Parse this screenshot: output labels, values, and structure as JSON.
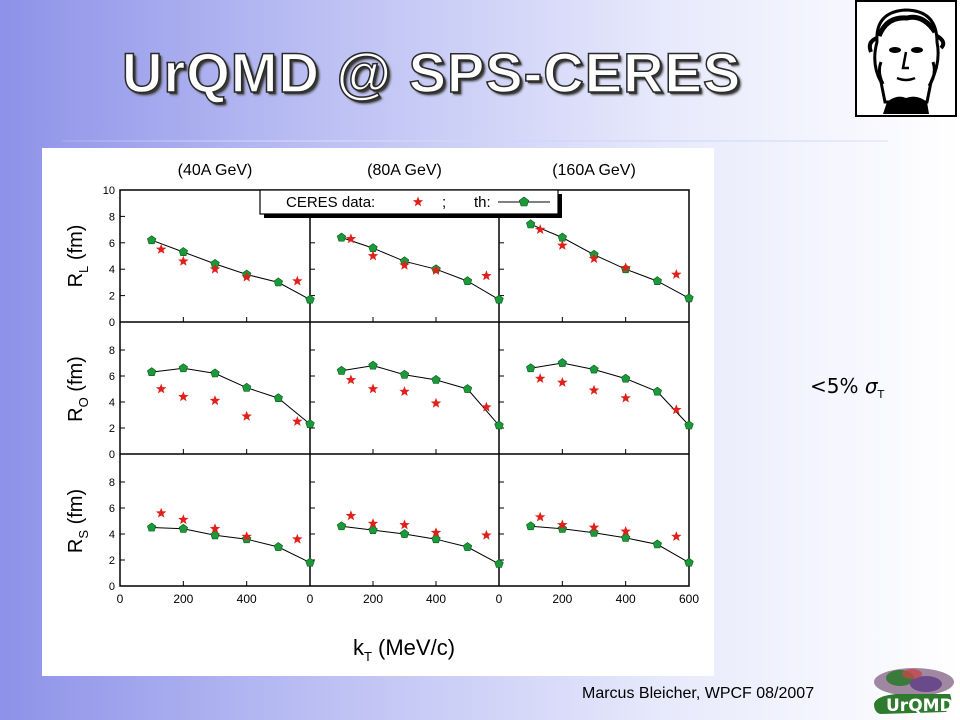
{
  "slide": {
    "title": "UrQMD @ SPS-CERES",
    "side_note_prefix": "<5%",
    "side_note_sigma": "σ",
    "side_note_sub": "T",
    "footer": "Marcus Bleicher, WPCF 08/2007",
    "logo_text": "UrQMD"
  },
  "chart_data": {
    "type": "scatter",
    "column_titles": [
      "(40A GeV)",
      "(80A GeV)",
      "(160A GeV)"
    ],
    "row_labels": [
      {
        "main": "R",
        "sub": "L",
        "unit": "(fm)"
      },
      {
        "main": "R",
        "sub": "O",
        "unit": "(fm)"
      },
      {
        "main": "R",
        "sub": "S",
        "unit": "(fm)"
      }
    ],
    "xlabel_main": "k",
    "xlabel_sub": "T",
    "xlabel_unit": "(MeV/c)",
    "xlim": [
      0,
      600
    ],
    "xticks": [
      0,
      200,
      400,
      600
    ],
    "x_tick_labels": [
      [
        "0",
        "200",
        "400"
      ],
      [
        "0",
        "200",
        "400"
      ],
      [
        "0",
        "200",
        "400",
        "600"
      ]
    ],
    "ylim": [
      0,
      10
    ],
    "yticks_top": [
      "0",
      "2",
      "4",
      "6",
      "8",
      "10"
    ],
    "yticks_other": [
      "0",
      "2",
      "4",
      "6",
      "8"
    ],
    "legend": {
      "data_label": "CERES data:",
      "separator": ";",
      "theory_label": "th:"
    },
    "colors": {
      "data": "#e0201a",
      "theory": "#1a9a3a",
      "line": "#000000"
    },
    "panels": [
      [
        {
          "theory": [
            [
              100,
              6.2
            ],
            [
              200,
              5.3
            ],
            [
              300,
              4.4
            ],
            [
              400,
              3.6
            ],
            [
              500,
              3.0
            ],
            [
              600,
              1.7
            ]
          ],
          "data": [
            [
              130,
              5.5
            ],
            [
              200,
              4.6
            ],
            [
              300,
              4.0
            ],
            [
              400,
              3.4
            ],
            [
              560,
              3.1
            ]
          ]
        },
        {
          "theory": [
            [
              100,
              6.4
            ],
            [
              200,
              5.6
            ],
            [
              300,
              4.6
            ],
            [
              400,
              4.0
            ],
            [
              500,
              3.1
            ],
            [
              600,
              1.7
            ]
          ],
          "data": [
            [
              130,
              6.3
            ],
            [
              200,
              5.0
            ],
            [
              300,
              4.3
            ],
            [
              400,
              3.9
            ],
            [
              560,
              3.5
            ]
          ]
        },
        {
          "theory": [
            [
              100,
              7.4
            ],
            [
              200,
              6.4
            ],
            [
              300,
              5.1
            ],
            [
              400,
              4.0
            ],
            [
              500,
              3.1
            ],
            [
              600,
              1.8
            ]
          ],
          "data": [
            [
              130,
              7.0
            ],
            [
              200,
              5.8
            ],
            [
              300,
              4.8
            ],
            [
              400,
              4.1
            ],
            [
              560,
              3.6
            ]
          ]
        }
      ],
      [
        {
          "theory": [
            [
              100,
              6.3
            ],
            [
              200,
              6.6
            ],
            [
              300,
              6.2
            ],
            [
              400,
              5.1
            ],
            [
              500,
              4.3
            ],
            [
              600,
              2.3
            ]
          ],
          "data": [
            [
              130,
              5.0
            ],
            [
              200,
              4.4
            ],
            [
              300,
              4.1
            ],
            [
              400,
              2.9
            ],
            [
              560,
              2.5
            ]
          ]
        },
        {
          "theory": [
            [
              100,
              6.4
            ],
            [
              200,
              6.8
            ],
            [
              300,
              6.1
            ],
            [
              400,
              5.7
            ],
            [
              500,
              5.0
            ],
            [
              600,
              2.2
            ]
          ],
          "data": [
            [
              130,
              5.7
            ],
            [
              200,
              5.0
            ],
            [
              300,
              4.8
            ],
            [
              400,
              3.9
            ],
            [
              560,
              3.6
            ]
          ]
        },
        {
          "theory": [
            [
              100,
              6.6
            ],
            [
              200,
              7.0
            ],
            [
              300,
              6.5
            ],
            [
              400,
              5.8
            ],
            [
              500,
              4.8
            ],
            [
              600,
              2.2
            ]
          ],
          "data": [
            [
              130,
              5.8
            ],
            [
              200,
              5.5
            ],
            [
              300,
              4.9
            ],
            [
              400,
              4.3
            ],
            [
              560,
              3.4
            ]
          ]
        }
      ],
      [
        {
          "theory": [
            [
              100,
              4.5
            ],
            [
              200,
              4.4
            ],
            [
              300,
              3.9
            ],
            [
              400,
              3.6
            ],
            [
              500,
              3.0
            ],
            [
              600,
              1.8
            ]
          ],
          "data": [
            [
              130,
              5.6
            ],
            [
              200,
              5.1
            ],
            [
              300,
              4.4
            ],
            [
              400,
              3.8
            ],
            [
              560,
              3.6
            ]
          ]
        },
        {
          "theory": [
            [
              100,
              4.6
            ],
            [
              200,
              4.3
            ],
            [
              300,
              4.0
            ],
            [
              400,
              3.6
            ],
            [
              500,
              3.0
            ],
            [
              600,
              1.7
            ]
          ],
          "data": [
            [
              130,
              5.4
            ],
            [
              200,
              4.8
            ],
            [
              300,
              4.7
            ],
            [
              400,
              4.1
            ],
            [
              560,
              3.9
            ]
          ]
        },
        {
          "theory": [
            [
              100,
              4.6
            ],
            [
              200,
              4.4
            ],
            [
              300,
              4.1
            ],
            [
              400,
              3.7
            ],
            [
              500,
              3.2
            ],
            [
              600,
              1.8
            ]
          ],
          "data": [
            [
              130,
              5.3
            ],
            [
              200,
              4.7
            ],
            [
              300,
              4.5
            ],
            [
              400,
              4.2
            ],
            [
              560,
              3.8
            ]
          ]
        }
      ]
    ]
  }
}
